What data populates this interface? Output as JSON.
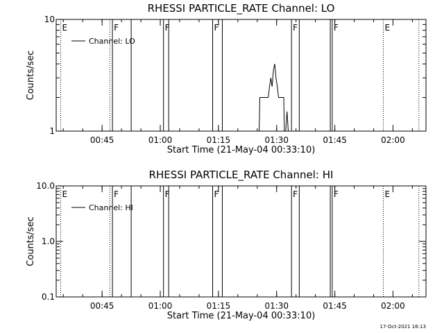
{
  "chart_data": [
    {
      "type": "line",
      "title": "RHESSI PARTICLE_RATE Channel: LO",
      "xlabel": "Start Time (21-May-04 00:33:10)",
      "ylabel": "Counts/sec",
      "y_scale": "log",
      "ylim": [
        1,
        10
      ],
      "y_ticks": [
        "1",
        "10"
      ],
      "xlim": [
        "00:33:10",
        "02:08:30"
      ],
      "x_ticks": [
        "00:45",
        "01:00",
        "01:15",
        "01:30",
        "01:45",
        "02:00"
      ],
      "legend": "top-left",
      "series": [
        {
          "name": "Channel: LO",
          "points": [
            [
              "01:25:30",
              1.0
            ],
            [
              "01:25:40",
              2.0
            ],
            [
              "01:27:50",
              2.0
            ],
            [
              "01:28:10",
              2.5
            ],
            [
              "01:28:30",
              3.0
            ],
            [
              "01:28:50",
              2.5
            ],
            [
              "01:29:10",
              3.5
            ],
            [
              "01:29:30",
              4.0
            ],
            [
              "01:29:50",
              3.0
            ],
            [
              "01:30:10",
              2.5
            ],
            [
              "01:30:30",
              2.0
            ],
            [
              "01:31:50",
              2.0
            ],
            [
              "01:32:00",
              1.0
            ],
            [
              "01:32:20",
              1.0
            ],
            [
              "01:32:40",
              1.5
            ],
            [
              "01:33:00",
              1.0
            ]
          ]
        }
      ]
    },
    {
      "type": "line",
      "title": "RHESSI PARTICLE_RATE Channel: HI",
      "xlabel": "Start Time (21-May-04 00:33:10)",
      "ylabel": "Counts/sec",
      "y_scale": "log",
      "ylim": [
        0.1,
        10
      ],
      "y_ticks": [
        "0.1",
        "1.0",
        "10.0"
      ],
      "xlim": [
        "00:33:10",
        "02:08:30"
      ],
      "x_ticks": [
        "00:45",
        "01:00",
        "01:15",
        "01:30",
        "01:45",
        "02:00"
      ],
      "legend": "top-left",
      "series": [
        {
          "name": "Channel: HI",
          "points": []
        }
      ]
    }
  ],
  "flags": [
    {
      "time": "00:34:20",
      "label": "E",
      "style": "dotted"
    },
    {
      "time": "00:47:00",
      "label": "",
      "style": "dotted"
    },
    {
      "time": "00:47:40",
      "label": "F",
      "style": "solid"
    },
    {
      "time": "00:52:30",
      "label": "",
      "style": "solid"
    },
    {
      "time": "01:00:50",
      "label": "F",
      "style": "solid"
    },
    {
      "time": "01:02:10",
      "label": "",
      "style": "solid"
    },
    {
      "time": "01:13:30",
      "label": "F",
      "style": "solid"
    },
    {
      "time": "01:16:00",
      "label": "",
      "style": "solid"
    },
    {
      "time": "01:33:50",
      "label": "F",
      "style": "solid"
    },
    {
      "time": "01:35:50",
      "label": "",
      "style": "solid"
    },
    {
      "time": "01:43:50",
      "label": "",
      "style": "solid"
    },
    {
      "time": "01:44:20",
      "label": "F",
      "style": "solid"
    },
    {
      "time": "01:57:30",
      "label": "E",
      "style": "dotted"
    },
    {
      "time": "02:06:40",
      "label": "",
      "style": "dotted"
    }
  ],
  "footer": {
    "timestamp": "17-Oct-2021 16:13"
  }
}
